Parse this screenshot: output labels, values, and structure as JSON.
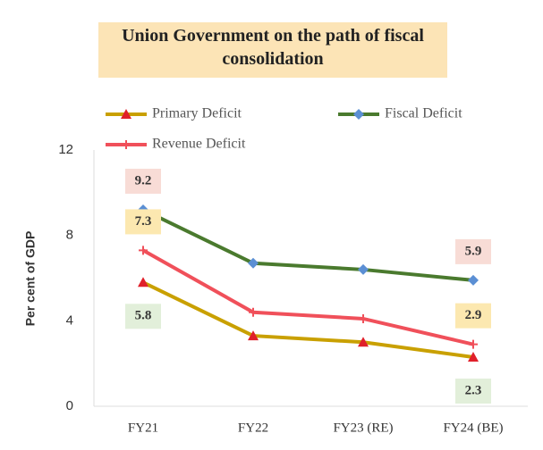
{
  "chart_data": {
    "type": "line",
    "title": "Union Government on the path of fiscal consolidation",
    "ylabel": "Per cent of GDP",
    "categories": [
      "FY21",
      "FY22",
      "FY23 (RE)",
      "FY24 (BE)"
    ],
    "series": [
      {
        "name": "Primary Deficit",
        "color": "#c9a000",
        "marker": "triangle",
        "marker_color": "#e0202a",
        "values": [
          5.8,
          3.3,
          3.0,
          2.3
        ],
        "label_color": "#e2efda",
        "label_position": "below",
        "labeled_points": [
          0,
          3
        ]
      },
      {
        "name": "Fiscal Deficit",
        "color": "#4a7a2e",
        "marker": "diamond",
        "marker_color": "#5b8fd4",
        "values": [
          9.2,
          6.7,
          6.4,
          5.9
        ],
        "label_color": "#f8dcd6",
        "label_position": "above",
        "labeled_points": [
          0,
          3
        ]
      },
      {
        "name": "Revenue Deficit",
        "color": "#f0505a",
        "marker": "cross",
        "marker_color": "#f0505a",
        "values": [
          7.3,
          4.4,
          4.1,
          2.9
        ],
        "label_color": "#fce8b0",
        "label_position": "above",
        "labeled_points": [
          0,
          3
        ]
      }
    ],
    "ylim": [
      0,
      12
    ],
    "yticks": [
      0,
      4,
      8,
      12
    ]
  }
}
